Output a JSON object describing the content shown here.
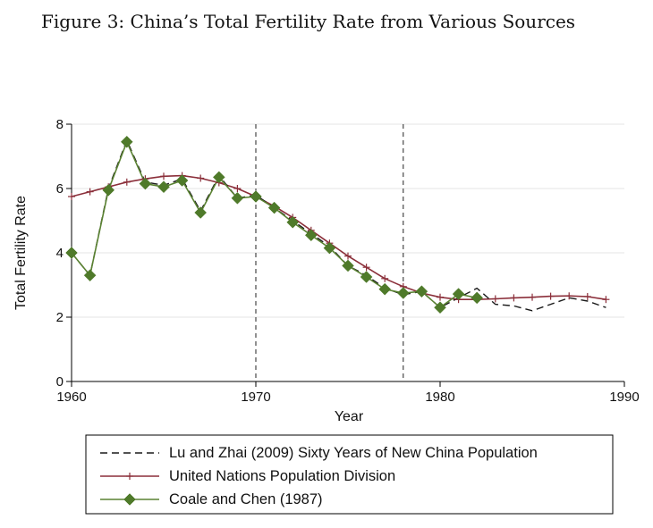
{
  "figure_title": "Figure 3:   China’s Total Fertility Rate from Various Sources",
  "colors": {
    "lu_zhai": "#1a1a1a",
    "un": "#8b2f3a",
    "coale": "#5a8232",
    "coale_marker": "#4f7a2a",
    "grid": "#e6e6e6",
    "axis": "#000000"
  },
  "chart_data": {
    "type": "line",
    "title": "Figure 3:   China’s Total Fertility Rate from Various Sources",
    "xlabel": "Year",
    "ylabel": "Total Fertility Rate",
    "xlim": [
      1960,
      1990
    ],
    "ylim": [
      0,
      8
    ],
    "xticks": [
      1960,
      1970,
      1980,
      1990
    ],
    "xtick_labels": [
      "1960",
      "1970",
      "1980",
      "1990"
    ],
    "yticks": [
      0,
      2,
      4,
      6,
      8
    ],
    "ytick_labels": [
      "0",
      "2",
      "4",
      "6",
      "8"
    ],
    "grid": "horizontal",
    "reference_lines_x": [
      1970,
      1978
    ],
    "legend_position": "bottom",
    "series": [
      {
        "name": "Lu and Zhai (2009) Sixty Years of New China Population",
        "style": "dashed",
        "marker": "none",
        "color_key": "lu_zhai",
        "x": [
          1960,
          1961,
          1962,
          1963,
          1964,
          1965,
          1966,
          1967,
          1968,
          1969,
          1970,
          1971,
          1972,
          1973,
          1974,
          1975,
          1976,
          1977,
          1978,
          1979,
          1980,
          1981,
          1982,
          1983,
          1984,
          1985,
          1986,
          1987,
          1988,
          1989
        ],
        "y": [
          4.0,
          3.3,
          6.0,
          7.5,
          6.2,
          6.1,
          6.3,
          5.3,
          6.4,
          5.7,
          5.8,
          5.4,
          5.0,
          4.6,
          4.2,
          3.6,
          3.3,
          2.9,
          2.7,
          2.8,
          2.3,
          2.6,
          2.9,
          2.4,
          2.35,
          2.2,
          2.4,
          2.6,
          2.5,
          2.3
        ]
      },
      {
        "name": "United Nations Population Division",
        "style": "solid",
        "marker": "plus",
        "color_key": "un",
        "x": [
          1960,
          1961,
          1962,
          1963,
          1964,
          1965,
          1966,
          1967,
          1968,
          1969,
          1970,
          1971,
          1972,
          1973,
          1974,
          1975,
          1976,
          1977,
          1978,
          1979,
          1980,
          1981,
          1982,
          1983,
          1984,
          1985,
          1986,
          1987,
          1988,
          1989
        ],
        "y": [
          5.75,
          5.9,
          6.05,
          6.2,
          6.3,
          6.38,
          6.4,
          6.32,
          6.18,
          6.0,
          5.75,
          5.45,
          5.1,
          4.7,
          4.3,
          3.9,
          3.55,
          3.2,
          2.95,
          2.75,
          2.62,
          2.55,
          2.55,
          2.57,
          2.6,
          2.62,
          2.65,
          2.66,
          2.64,
          2.55
        ]
      },
      {
        "name": "Coale and Chen (1987)",
        "style": "solid",
        "marker": "diamond",
        "color_key": "coale",
        "x": [
          1960,
          1961,
          1962,
          1963,
          1964,
          1965,
          1966,
          1967,
          1968,
          1969,
          1970,
          1971,
          1972,
          1973,
          1974,
          1975,
          1976,
          1977,
          1978,
          1979,
          1980,
          1981,
          1982
        ],
        "y": [
          4.0,
          3.3,
          5.95,
          7.45,
          6.15,
          6.05,
          6.25,
          5.25,
          6.35,
          5.7,
          5.75,
          5.4,
          4.95,
          4.55,
          4.15,
          3.6,
          3.25,
          2.87,
          2.75,
          2.8,
          2.3,
          2.72,
          2.6
        ]
      }
    ]
  }
}
